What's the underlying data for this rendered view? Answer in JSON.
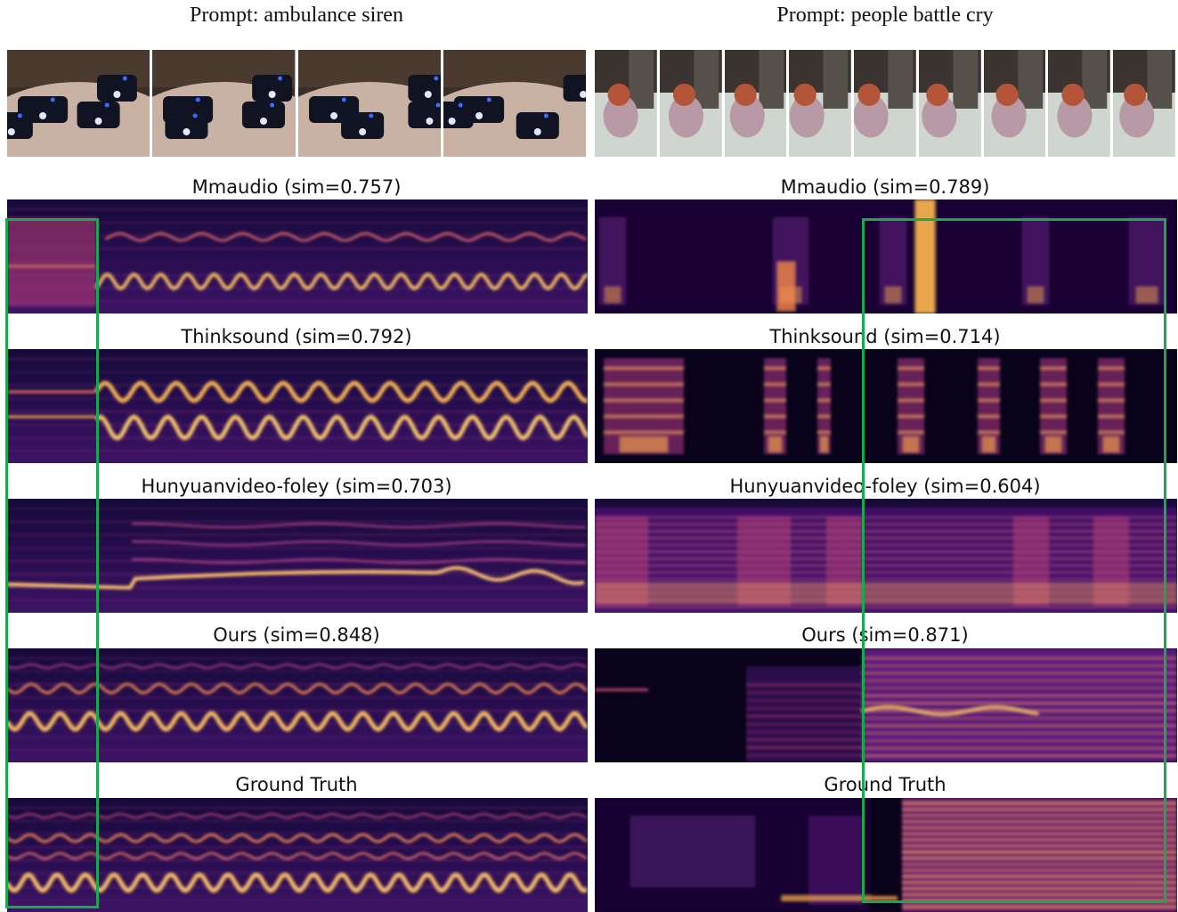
{
  "figure": {
    "left": {
      "prompt": "Prompt: ambulance siren",
      "frame_count": 4,
      "panels": [
        {
          "title": "Mmaudio (sim=0.757)",
          "pattern": "siren-wavy"
        },
        {
          "title": "Thinksound (sim=0.792)",
          "pattern": "siren-strong"
        },
        {
          "title": "Hunyuanvideo-foley (sim=0.703)",
          "pattern": "siren-smooth"
        },
        {
          "title": "Ours (sim=0.848)",
          "pattern": "siren-wavy-full"
        },
        {
          "title": "Ground Truth",
          "pattern": "siren-gt"
        }
      ]
    },
    "right": {
      "prompt": "Prompt: people battle cry",
      "frame_count": 9,
      "panels": [
        {
          "title": "Mmaudio (sim=0.789)",
          "pattern": "sparse"
        },
        {
          "title": "Thinksound (sim=0.714)",
          "pattern": "bursts"
        },
        {
          "title": "Hunyuanvideo-foley (sim=0.604)",
          "pattern": "dense"
        },
        {
          "title": "Ours (sim=0.871)",
          "pattern": "late-dense"
        },
        {
          "title": "Ground Truth",
          "pattern": "gt-late"
        }
      ]
    },
    "colors": {
      "highlight_box": "#1aa84f",
      "spec_dark": "#0b0420",
      "spec_mid": "#6a1f8a",
      "spec_bright": "#f6a44a"
    }
  }
}
